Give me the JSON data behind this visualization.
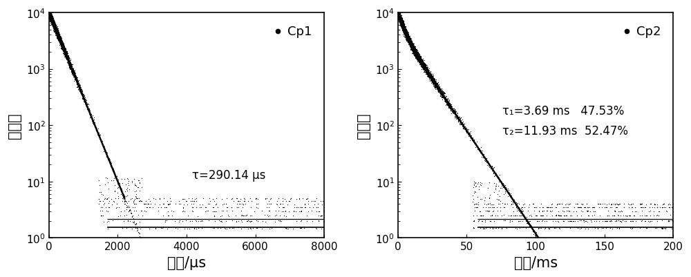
{
  "plot1": {
    "label": "Cp1",
    "xlabel": "寿命/μs",
    "ylabel": "光子数",
    "xlim": [
      0,
      8000
    ],
    "ylim": [
      1,
      15000
    ],
    "ylim_display": [
      1,
      10000
    ],
    "tau": 290.14,
    "annotation": "τ=290.14 μs",
    "fit_line_color": "#000000",
    "dot_color": "#000000",
    "background": "#ffffff",
    "noise_levels": [
      1.5,
      2.0,
      2.5,
      3.0,
      3.5,
      4.0,
      4.5,
      5.0
    ],
    "noise_x_start": 1800
  },
  "plot2": {
    "label": "Cp2",
    "xlabel": "寿命/ms",
    "ylabel": "光子数",
    "xlim": [
      0,
      200
    ],
    "ylim": [
      1,
      15000
    ],
    "ylim_display": [
      1,
      10000
    ],
    "tau1": 3.69,
    "pct1": 47.53,
    "tau2": 11.93,
    "pct2": 52.47,
    "fit_line_color": "#000000",
    "dot_color": "#000000",
    "background": "#ffffff",
    "noise_levels": [
      1.5,
      2.0,
      2.5,
      3.0,
      3.5,
      4.0
    ],
    "noise_x_start": 60
  },
  "fig_bg": "#ffffff",
  "font_size_label": 15,
  "font_size_tick": 11,
  "font_size_legend": 13,
  "font_size_annotation": 12
}
